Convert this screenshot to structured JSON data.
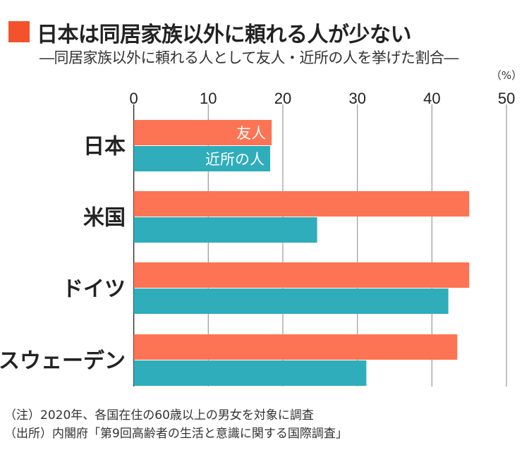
{
  "header": {
    "title": "日本は同居家族以外に頼れる人が少ない",
    "subtitle": "―同居家族以外に頼れる人として友人・近所の人を挙げた割合―"
  },
  "chart_data": {
    "type": "bar",
    "orientation": "horizontal",
    "unit_label": "（%）",
    "categories": [
      "日本",
      "米国",
      "ドイツ",
      "スウェーデン"
    ],
    "series": [
      {
        "name": "友人",
        "values": [
          18.5,
          45.0,
          45.0,
          43.4
        ],
        "color": "#fc7453"
      },
      {
        "name": "近所の人",
        "values": [
          18.3,
          24.6,
          42.2,
          31.2
        ],
        "color": "#2fadba"
      }
    ],
    "xlim": [
      0,
      50
    ],
    "ticks": [
      "0",
      "10",
      "20",
      "30",
      "40",
      "50"
    ],
    "tick_values": [
      0,
      10,
      20,
      30,
      40,
      50
    ],
    "grid": true,
    "legend": "inline labels on first category bars"
  },
  "notes": {
    "note": "（注）2020年、各国在住の60歳以上の男女を対象に調査",
    "source": "（出所）内閣府「第9回高齢者の生活と意識に関する国際調査」"
  }
}
